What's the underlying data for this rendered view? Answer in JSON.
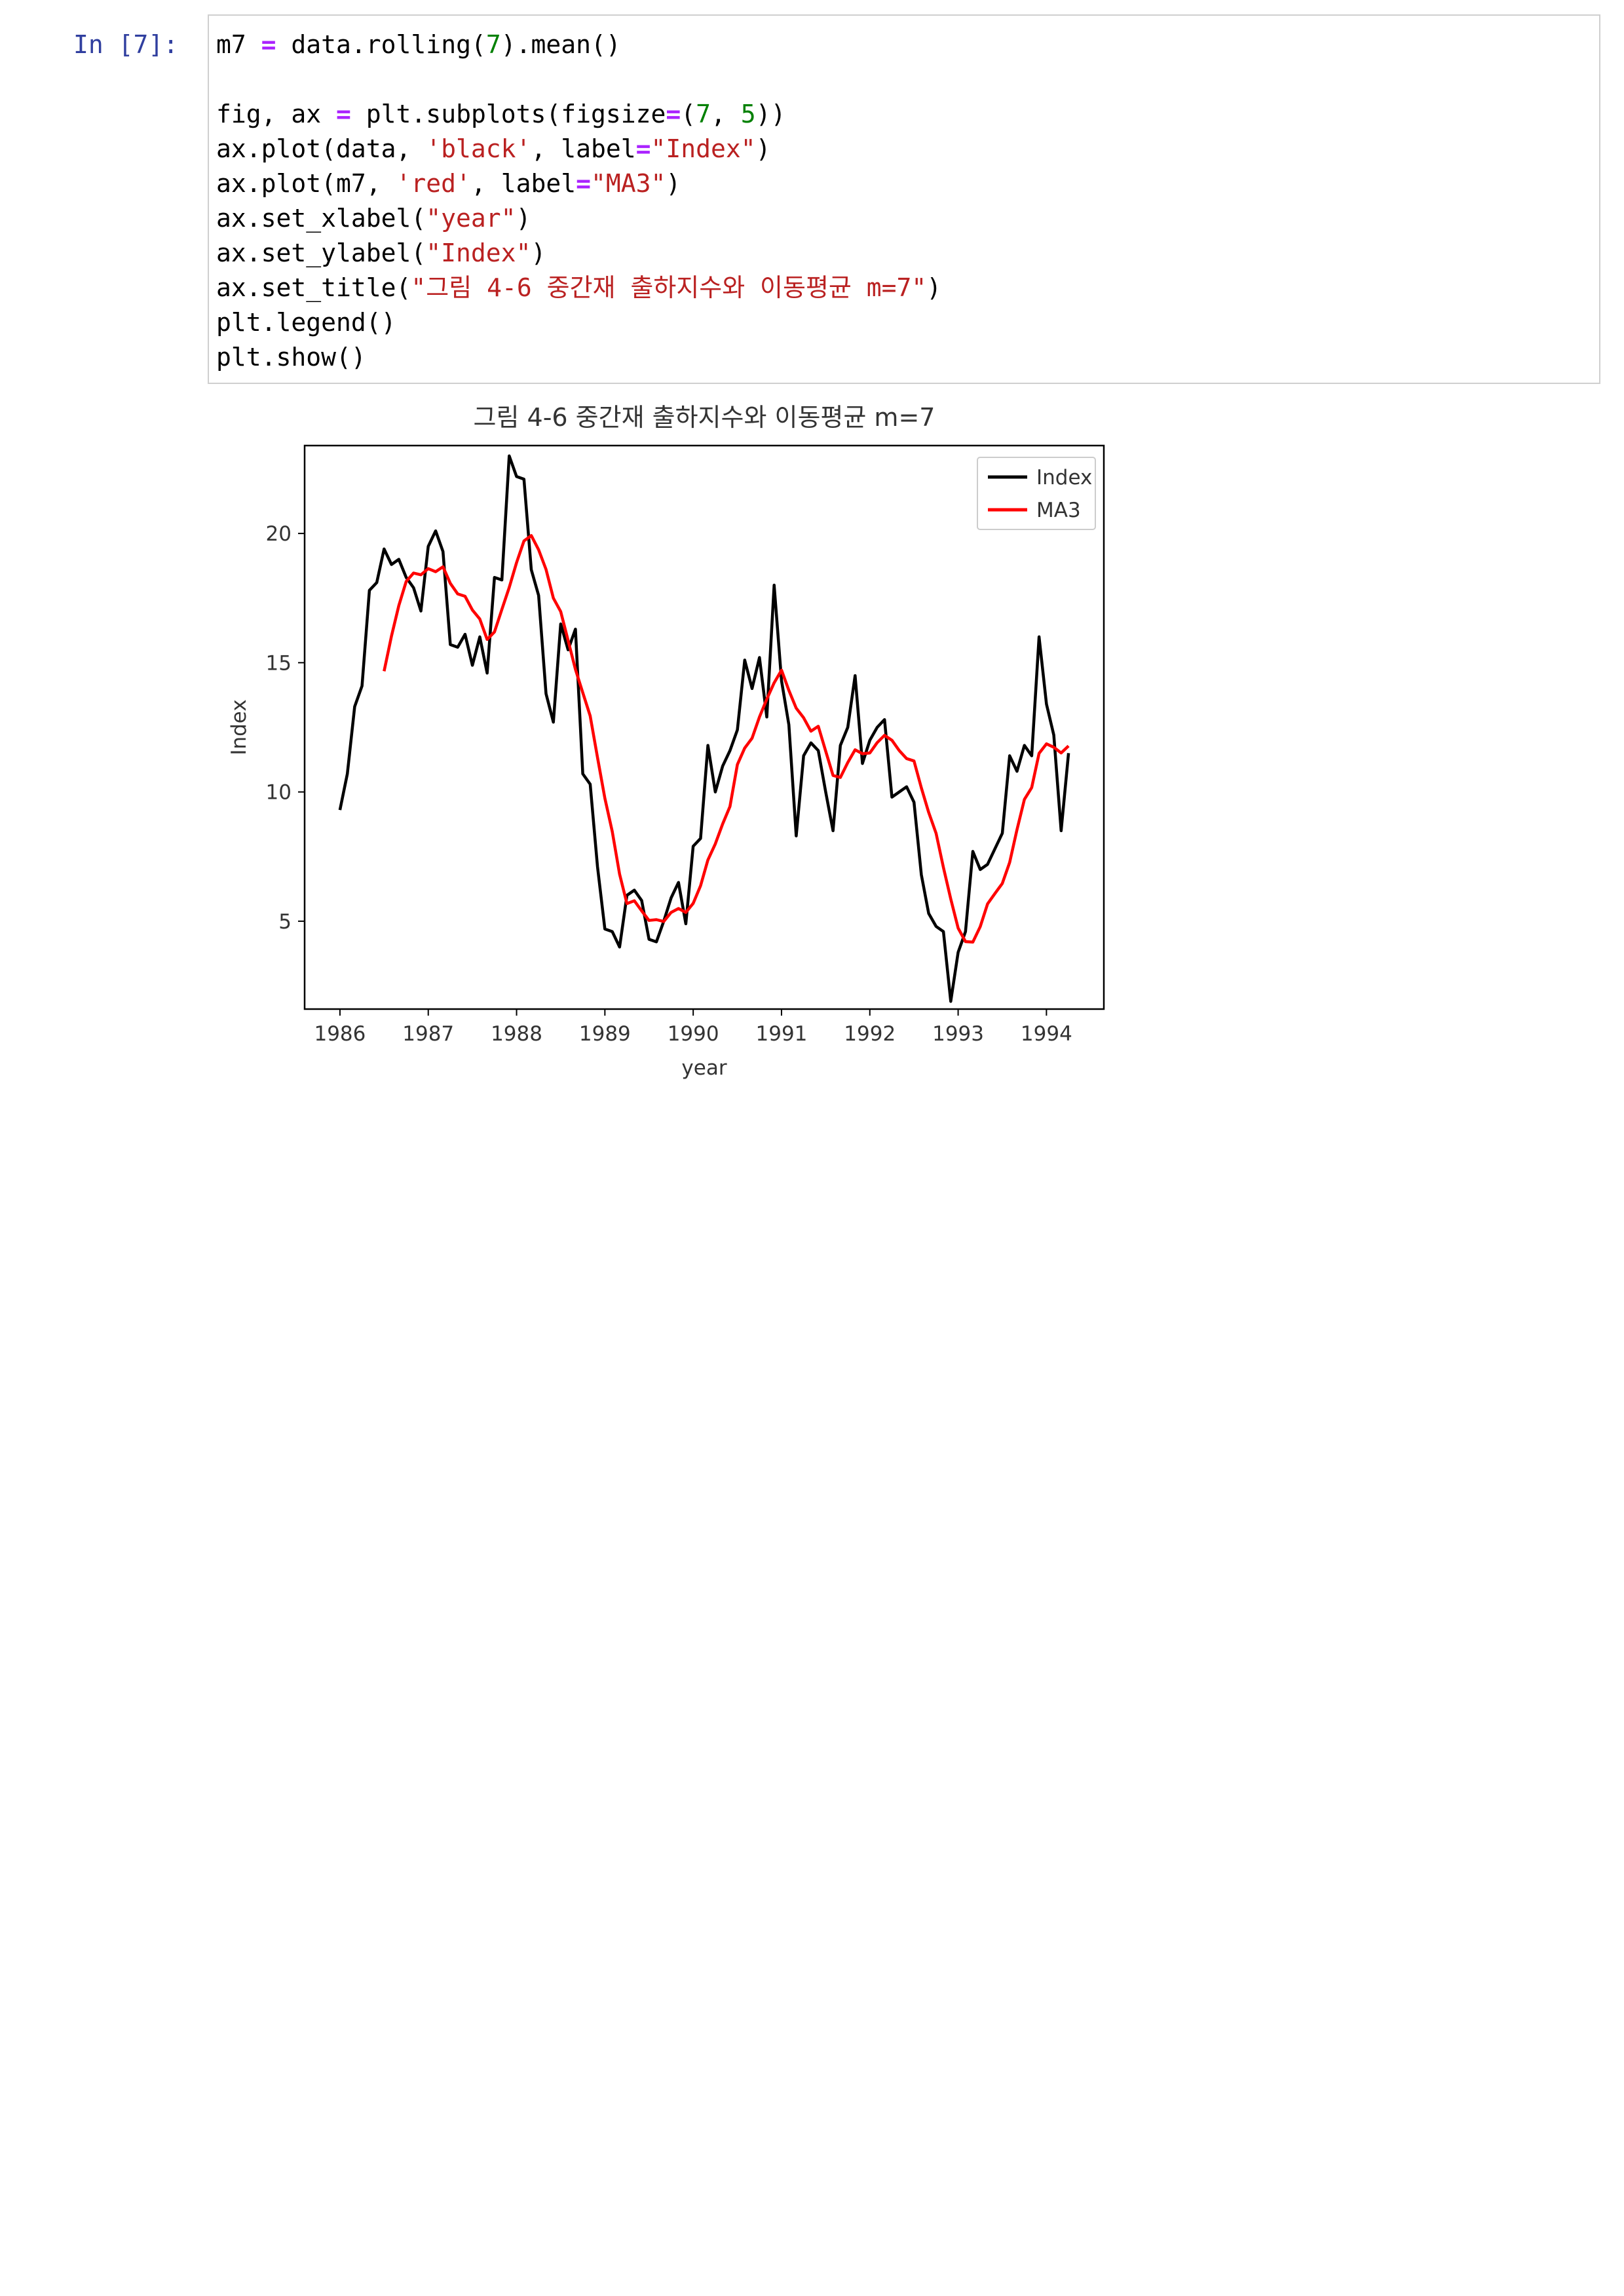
{
  "cell": {
    "prompt": "In [7]:",
    "code_lines": [
      [
        {
          "t": "m7 "
        },
        {
          "t": "=",
          "c": "op"
        },
        {
          "t": " data.rolling("
        },
        {
          "t": "7",
          "c": "num"
        },
        {
          "t": ").mean()"
        }
      ],
      [],
      [
        {
          "t": "fig, ax "
        },
        {
          "t": "=",
          "c": "op"
        },
        {
          "t": " plt.subplots(figsize"
        },
        {
          "t": "=",
          "c": "op"
        },
        {
          "t": "("
        },
        {
          "t": "7",
          "c": "num"
        },
        {
          "t": ", "
        },
        {
          "t": "5",
          "c": "num"
        },
        {
          "t": "))"
        }
      ],
      [
        {
          "t": "ax.plot(data, "
        },
        {
          "t": "'black'",
          "c": "str"
        },
        {
          "t": ", label"
        },
        {
          "t": "=",
          "c": "op"
        },
        {
          "t": "\"Index\"",
          "c": "str"
        },
        {
          "t": ")"
        }
      ],
      [
        {
          "t": "ax.plot(m7, "
        },
        {
          "t": "'red'",
          "c": "str"
        },
        {
          "t": ", label"
        },
        {
          "t": "=",
          "c": "op"
        },
        {
          "t": "\"MA3\"",
          "c": "str"
        },
        {
          "t": ")"
        }
      ],
      [
        {
          "t": "ax.set_xlabel("
        },
        {
          "t": "\"year\"",
          "c": "str"
        },
        {
          "t": ")"
        }
      ],
      [
        {
          "t": "ax.set_ylabel("
        },
        {
          "t": "\"Index\"",
          "c": "str"
        },
        {
          "t": ")"
        }
      ],
      [
        {
          "t": "ax.set_title("
        },
        {
          "t": "\"그림 4-6 중간재 출하지수와 이동평균 m=7\"",
          "c": "str"
        },
        {
          "t": ")"
        }
      ],
      [
        {
          "t": "plt.legend()"
        }
      ],
      [
        {
          "t": "plt.show()"
        }
      ]
    ]
  },
  "colors": {
    "prompt": "#303f9f",
    "operator": "#aa22ff",
    "number": "#008000",
    "string": "#ba2121",
    "index_line": "#000000",
    "ma_line": "#ff0000"
  },
  "chart_data": {
    "type": "line",
    "title": "그림 4-6 중간재 출하지수와 이동평균 m=7",
    "xlabel": "year",
    "ylabel": "Index",
    "xlim": [
      1985.6,
      1994.65
    ],
    "ylim": [
      1.6,
      23.4
    ],
    "xticks": [
      1986,
      1987,
      1988,
      1989,
      1990,
      1991,
      1992,
      1993,
      1994
    ],
    "yticks": [
      5,
      10,
      15,
      20
    ],
    "legend": {
      "position": "top-right",
      "entries": [
        "Index",
        "MA3"
      ]
    },
    "grid": false,
    "x_start": 1986.0,
    "x_step_months": 1,
    "series": [
      {
        "name": "Index",
        "color": "#000000",
        "values": [
          9.3,
          10.7,
          13.3,
          14.1,
          17.8,
          18.1,
          19.4,
          18.8,
          19.0,
          18.3,
          17.9,
          17.0,
          19.5,
          20.1,
          19.3,
          15.7,
          15.6,
          16.1,
          14.9,
          16.0,
          14.6,
          18.3,
          18.2,
          23.0,
          22.2,
          22.1,
          18.6,
          17.6,
          13.8,
          12.7,
          16.5,
          15.5,
          16.3,
          10.7,
          10.3,
          7.1,
          4.7,
          4.6,
          4.0,
          6.0,
          6.2,
          5.8,
          4.3,
          4.2,
          5.0,
          5.9,
          6.5,
          4.9,
          7.9,
          8.2,
          11.8,
          10.0,
          11.0,
          11.6,
          12.4,
          15.1,
          14.0,
          15.2,
          12.9,
          18.0,
          14.3,
          12.6,
          8.3,
          11.4,
          11.9,
          11.6,
          10.0,
          8.5,
          11.8,
          12.5,
          14.5,
          11.1,
          12.0,
          12.5,
          12.8,
          9.8,
          10.0,
          10.2,
          9.6,
          6.8,
          5.3,
          4.8,
          4.6,
          1.9,
          3.8,
          4.6,
          7.7,
          7.0,
          7.2,
          7.8,
          8.4,
          11.4,
          10.8,
          11.8,
          11.4,
          16.0,
          13.4,
          12.2,
          8.5,
          11.5
        ]
      },
      {
        "name": "MA3",
        "color": "#ff0000",
        "values": [
          null,
          null,
          null,
          null,
          null,
          null,
          14.67,
          16.03,
          17.21,
          18.14,
          18.47,
          18.4,
          18.64,
          18.52,
          18.71,
          18.07,
          17.66,
          17.57,
          17.04,
          16.69,
          15.9,
          16.19,
          17.06,
          17.91,
          18.87,
          19.71,
          19.92,
          19.37,
          18.61,
          17.5,
          16.98,
          15.86,
          14.74,
          13.84,
          12.94,
          11.33,
          9.76,
          8.47,
          6.82,
          5.68,
          5.79,
          5.4,
          5.03,
          5.06,
          4.99,
          5.34,
          5.49,
          5.34,
          5.69,
          6.37,
          7.37,
          7.99,
          8.76,
          9.44,
          11.06,
          11.7,
          12.08,
          12.9,
          13.59,
          14.22,
          14.71,
          13.93,
          13.24,
          12.87,
          12.35,
          12.54,
          11.58,
          10.64,
          10.56,
          11.14,
          11.63,
          11.48,
          11.51,
          11.91,
          12.19,
          12.0,
          11.6,
          11.29,
          11.2,
          10.16,
          9.21,
          8.4,
          7.08,
          5.86,
          4.73,
          4.21,
          4.19,
          4.79,
          5.67,
          6.07,
          6.46,
          7.27,
          8.54,
          9.71,
          10.17,
          11.49,
          11.86,
          11.73,
          11.51,
          11.78
        ]
      }
    ]
  }
}
